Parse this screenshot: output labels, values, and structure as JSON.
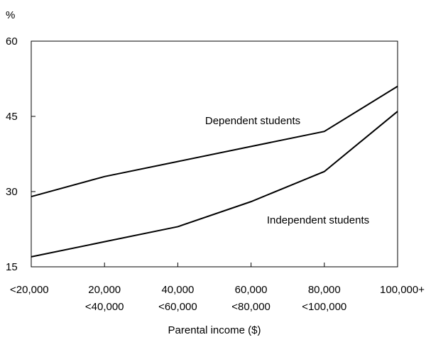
{
  "chart_data": {
    "type": "line",
    "title": "",
    "ylabel": "%",
    "xlabel": "Parental income ($)",
    "ylim": [
      15,
      60
    ],
    "yticks": [
      "15",
      "30",
      "45",
      "60"
    ],
    "categories": [
      [
        "<20,000"
      ],
      [
        "20,000",
        "<40,000"
      ],
      [
        "40,000",
        "<60,000"
      ],
      [
        "60,000",
        "<80,000"
      ],
      [
        "80,000",
        "<100,000"
      ],
      [
        "100,000+"
      ]
    ],
    "series": [
      {
        "name": "Dependent students",
        "values": [
          29,
          33,
          36,
          39,
          42,
          51
        ]
      },
      {
        "name": "Independent students",
        "values": [
          17,
          20,
          23,
          28,
          34,
          46
        ]
      }
    ],
    "grid": false,
    "legend": "inline labels",
    "colors": {
      "line": "#000000",
      "axis": "#000000"
    }
  }
}
